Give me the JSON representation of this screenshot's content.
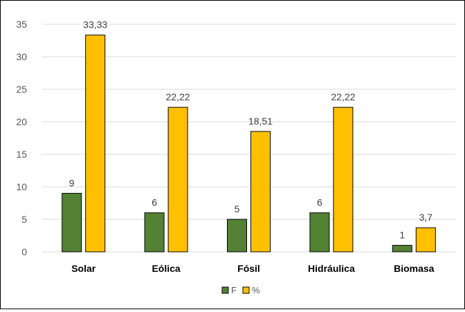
{
  "chart_data": {
    "type": "bar",
    "categories": [
      "Solar",
      "Eólica",
      "Fósil",
      "Hidráulica",
      "Biomasa"
    ],
    "series": [
      {
        "name": "F",
        "values": [
          9,
          6,
          5,
          6,
          1
        ],
        "labels": [
          "9",
          "6",
          "5",
          "6",
          "1"
        ],
        "color": "#548235"
      },
      {
        "name": "%",
        "values": [
          33.33,
          22.22,
          18.51,
          22.22,
          3.7
        ],
        "labels": [
          "33,33",
          "22,22",
          "18,51",
          "22,22",
          "3,7"
        ],
        "color": "#FFC000"
      }
    ],
    "ylim": [
      0,
      35
    ],
    "yticks": [
      0,
      5,
      10,
      15,
      20,
      25,
      30,
      35
    ],
    "grid": true,
    "legend_position": "bottom"
  }
}
